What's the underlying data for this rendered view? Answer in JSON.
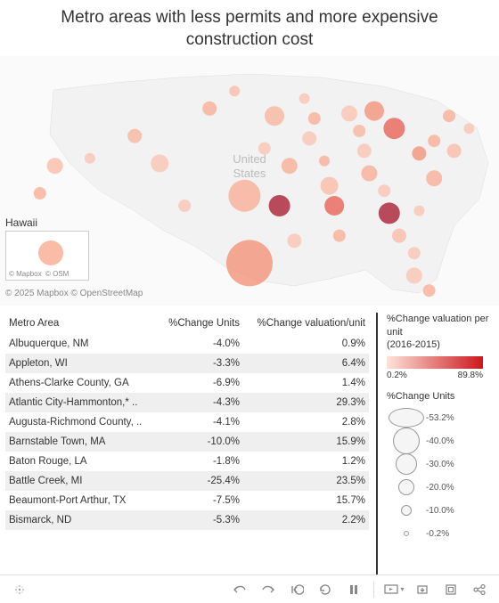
{
  "title": "Metro areas with less permits and more expensive construction cost",
  "map": {
    "background": "#fafafa",
    "land_fill": "#f2f2f2",
    "land_stroke": "#dddddd",
    "country_label": "United States",
    "hawaii": {
      "label": "Hawaii",
      "attr1": "© Mapbox",
      "attr2": "© OSM",
      "bubble_color": "#f9a58a",
      "bubble_r": 14
    },
    "attribution": "© 2025 Mapbox  © OpenStreetMap",
    "bubbles": [
      {
        "x": 0.11,
        "y": 0.44,
        "r": 9,
        "c": "#f9b8a3"
      },
      {
        "x": 0.08,
        "y": 0.55,
        "r": 7,
        "c": "#f8ab92"
      },
      {
        "x": 0.18,
        "y": 0.41,
        "r": 6,
        "c": "#f9c2b0"
      },
      {
        "x": 0.27,
        "y": 0.32,
        "r": 8,
        "c": "#f8b19a"
      },
      {
        "x": 0.32,
        "y": 0.43,
        "r": 10,
        "c": "#f9c2b0"
      },
      {
        "x": 0.37,
        "y": 0.6,
        "r": 7,
        "c": "#f9c2b0"
      },
      {
        "x": 0.42,
        "y": 0.21,
        "r": 8,
        "c": "#f8ab92"
      },
      {
        "x": 0.47,
        "y": 0.14,
        "r": 6,
        "c": "#f9b8a3"
      },
      {
        "x": 0.49,
        "y": 0.56,
        "r": 18,
        "c": "#f8ab92"
      },
      {
        "x": 0.5,
        "y": 0.83,
        "r": 26,
        "c": "#f38e72"
      },
      {
        "x": 0.56,
        "y": 0.6,
        "r": 12,
        "c": "#a5122a"
      },
      {
        "x": 0.53,
        "y": 0.37,
        "r": 7,
        "c": "#f9c2b0"
      },
      {
        "x": 0.58,
        "y": 0.44,
        "r": 9,
        "c": "#f8ab92"
      },
      {
        "x": 0.55,
        "y": 0.24,
        "r": 11,
        "c": "#f8b19a"
      },
      {
        "x": 0.61,
        "y": 0.17,
        "r": 6,
        "c": "#f9c2b0"
      },
      {
        "x": 0.63,
        "y": 0.25,
        "r": 7,
        "c": "#f8ab92"
      },
      {
        "x": 0.62,
        "y": 0.33,
        "r": 8,
        "c": "#f9c2b0"
      },
      {
        "x": 0.59,
        "y": 0.74,
        "r": 8,
        "c": "#f9c2b0"
      },
      {
        "x": 0.65,
        "y": 0.42,
        "r": 6,
        "c": "#f8ab92"
      },
      {
        "x": 0.66,
        "y": 0.52,
        "r": 10,
        "c": "#f9b8a3"
      },
      {
        "x": 0.67,
        "y": 0.6,
        "r": 11,
        "c": "#e85a4f"
      },
      {
        "x": 0.68,
        "y": 0.72,
        "r": 7,
        "c": "#f8ab92"
      },
      {
        "x": 0.7,
        "y": 0.23,
        "r": 9,
        "c": "#f9c2b0"
      },
      {
        "x": 0.72,
        "y": 0.3,
        "r": 7,
        "c": "#f8b19a"
      },
      {
        "x": 0.75,
        "y": 0.22,
        "r": 11,
        "c": "#f38e72"
      },
      {
        "x": 0.73,
        "y": 0.38,
        "r": 8,
        "c": "#f9c2b0"
      },
      {
        "x": 0.74,
        "y": 0.47,
        "r": 9,
        "c": "#f8ab92"
      },
      {
        "x": 0.77,
        "y": 0.54,
        "r": 7,
        "c": "#f9c2b0"
      },
      {
        "x": 0.78,
        "y": 0.63,
        "r": 12,
        "c": "#a5122a"
      },
      {
        "x": 0.8,
        "y": 0.72,
        "r": 8,
        "c": "#f9b8a3"
      },
      {
        "x": 0.83,
        "y": 0.88,
        "r": 9,
        "c": "#f9c2b0"
      },
      {
        "x": 0.83,
        "y": 0.79,
        "r": 7,
        "c": "#f9c2b0"
      },
      {
        "x": 0.86,
        "y": 0.94,
        "r": 7,
        "c": "#f8ab92"
      },
      {
        "x": 0.84,
        "y": 0.62,
        "r": 6,
        "c": "#f9c2b0"
      },
      {
        "x": 0.87,
        "y": 0.49,
        "r": 9,
        "c": "#f8ab92"
      },
      {
        "x": 0.84,
        "y": 0.39,
        "r": 8,
        "c": "#f38e72"
      },
      {
        "x": 0.87,
        "y": 0.34,
        "r": 7,
        "c": "#f8ab92"
      },
      {
        "x": 0.91,
        "y": 0.38,
        "r": 8,
        "c": "#f9b8a3"
      },
      {
        "x": 0.94,
        "y": 0.29,
        "r": 6,
        "c": "#f9c2b0"
      },
      {
        "x": 0.9,
        "y": 0.24,
        "r": 7,
        "c": "#f8ab92"
      },
      {
        "x": 0.79,
        "y": 0.29,
        "r": 12,
        "c": "#e85a4f"
      }
    ]
  },
  "table": {
    "columns": [
      "Metro Area",
      "%Change Units",
      "%Change valuation/unit"
    ],
    "rows": [
      [
        "Albuquerque, NM",
        "-4.0%",
        "0.9%"
      ],
      [
        "Appleton, WI",
        "-3.3%",
        "6.4%"
      ],
      [
        "Athens-Clarke County, GA",
        "-6.9%",
        "1.4%"
      ],
      [
        "Atlantic City-Hammonton,* ..",
        "-4.3%",
        "29.3%"
      ],
      [
        "Augusta-Richmond County, ..",
        "-4.1%",
        "2.8%"
      ],
      [
        "Barnstable Town, MA",
        "-10.0%",
        "15.9%"
      ],
      [
        "Baton Rouge, LA",
        "-1.8%",
        "1.2%"
      ],
      [
        "Battle Creek, MI",
        "-25.4%",
        "23.5%"
      ],
      [
        "Beaumont-Port Arthur, TX",
        "-7.5%",
        "15.7%"
      ],
      [
        "Bismarck, ND",
        "-5.3%",
        "2.2%"
      ]
    ]
  },
  "legend": {
    "color": {
      "title": "%Change valuation per unit\n(2016-2015)",
      "gradient_from": "#fde3d9",
      "gradient_to": "#cb181d",
      "min_label": "0.2%",
      "max_label": "89.8%"
    },
    "size": {
      "title": "%Change Units",
      "items": [
        {
          "d": 40,
          "label": "-53.2%",
          "shape": "ellipse"
        },
        {
          "d": 30,
          "label": "-40.0%",
          "shape": "circle"
        },
        {
          "d": 24,
          "label": "-30.0%",
          "shape": "circle"
        },
        {
          "d": 18,
          "label": "-20.0%",
          "shape": "circle"
        },
        {
          "d": 12,
          "label": "-10.0%",
          "shape": "circle"
        },
        {
          "d": 6,
          "label": "-0.2%",
          "shape": "circle"
        }
      ]
    }
  },
  "toolbar": {
    "tools": [
      "view-data",
      "undo",
      "redo",
      "revert",
      "refresh",
      "pause",
      "presentation",
      "download",
      "fullscreen",
      "share"
    ]
  }
}
